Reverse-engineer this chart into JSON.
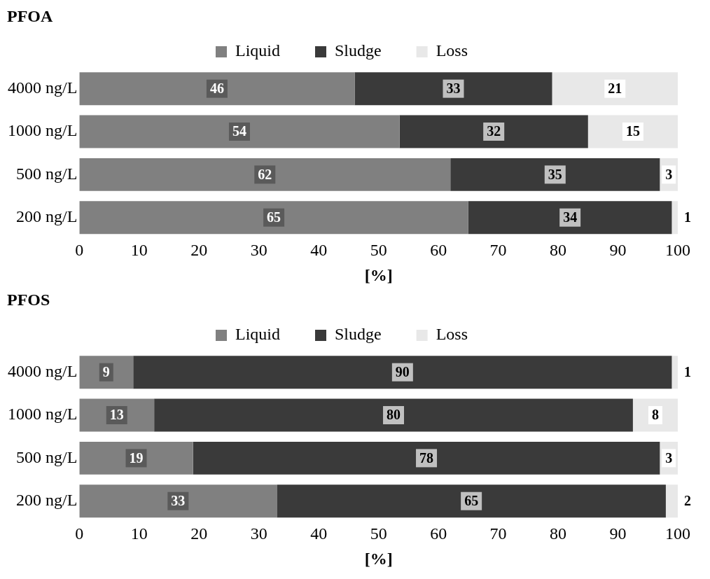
{
  "chart_data": [
    {
      "type": "bar",
      "orientation": "horizontal",
      "stacked": true,
      "title": "PFOA",
      "xlabel": "[%]",
      "categories": [
        "4000 ng/L",
        "1000 ng/L",
        "500 ng/L",
        "200 ng/L"
      ],
      "series": [
        {
          "name": "Liquid",
          "color": "#808080",
          "values": [
            46,
            53.5,
            62,
            65
          ],
          "value_labels": [
            "46",
            "54",
            "62",
            "65"
          ]
        },
        {
          "name": "Sludge",
          "color": "#3a3a3a",
          "values": [
            33,
            31.5,
            35,
            34
          ],
          "value_labels": [
            "33",
            "32",
            "35",
            "34"
          ]
        },
        {
          "name": "Loss",
          "color": "#e8e8e8",
          "values": [
            21,
            15,
            3,
            1
          ],
          "value_labels": [
            "21",
            "15",
            "3",
            "1"
          ]
        }
      ],
      "xlim": [
        0,
        100
      ],
      "xticks": [
        0,
        10,
        20,
        30,
        40,
        50,
        60,
        70,
        80,
        90,
        100
      ],
      "grid": false,
      "legend": "top"
    },
    {
      "type": "bar",
      "orientation": "horizontal",
      "stacked": true,
      "title": "PFOS",
      "xlabel": "[%]",
      "categories": [
        "4000 ng/L",
        "1000 ng/L",
        "500 ng/L",
        "200 ng/L"
      ],
      "series": [
        {
          "name": "Liquid",
          "color": "#808080",
          "values": [
            9,
            12.5,
            19,
            33
          ],
          "value_labels": [
            "9",
            "13",
            "19",
            "33"
          ]
        },
        {
          "name": "Sludge",
          "color": "#3a3a3a",
          "values": [
            90,
            80,
            78,
            65
          ],
          "value_labels": [
            "90",
            "80",
            "78",
            "65"
          ]
        },
        {
          "name": "Loss",
          "color": "#e8e8e8",
          "values": [
            1,
            7.5,
            3,
            2
          ],
          "value_labels": [
            "1",
            "8",
            "3",
            "2"
          ]
        }
      ],
      "xlim": [
        0,
        100
      ],
      "xticks": [
        0,
        10,
        20,
        30,
        40,
        50,
        60,
        70,
        80,
        90,
        100
      ],
      "grid": false,
      "legend": "top"
    }
  ]
}
